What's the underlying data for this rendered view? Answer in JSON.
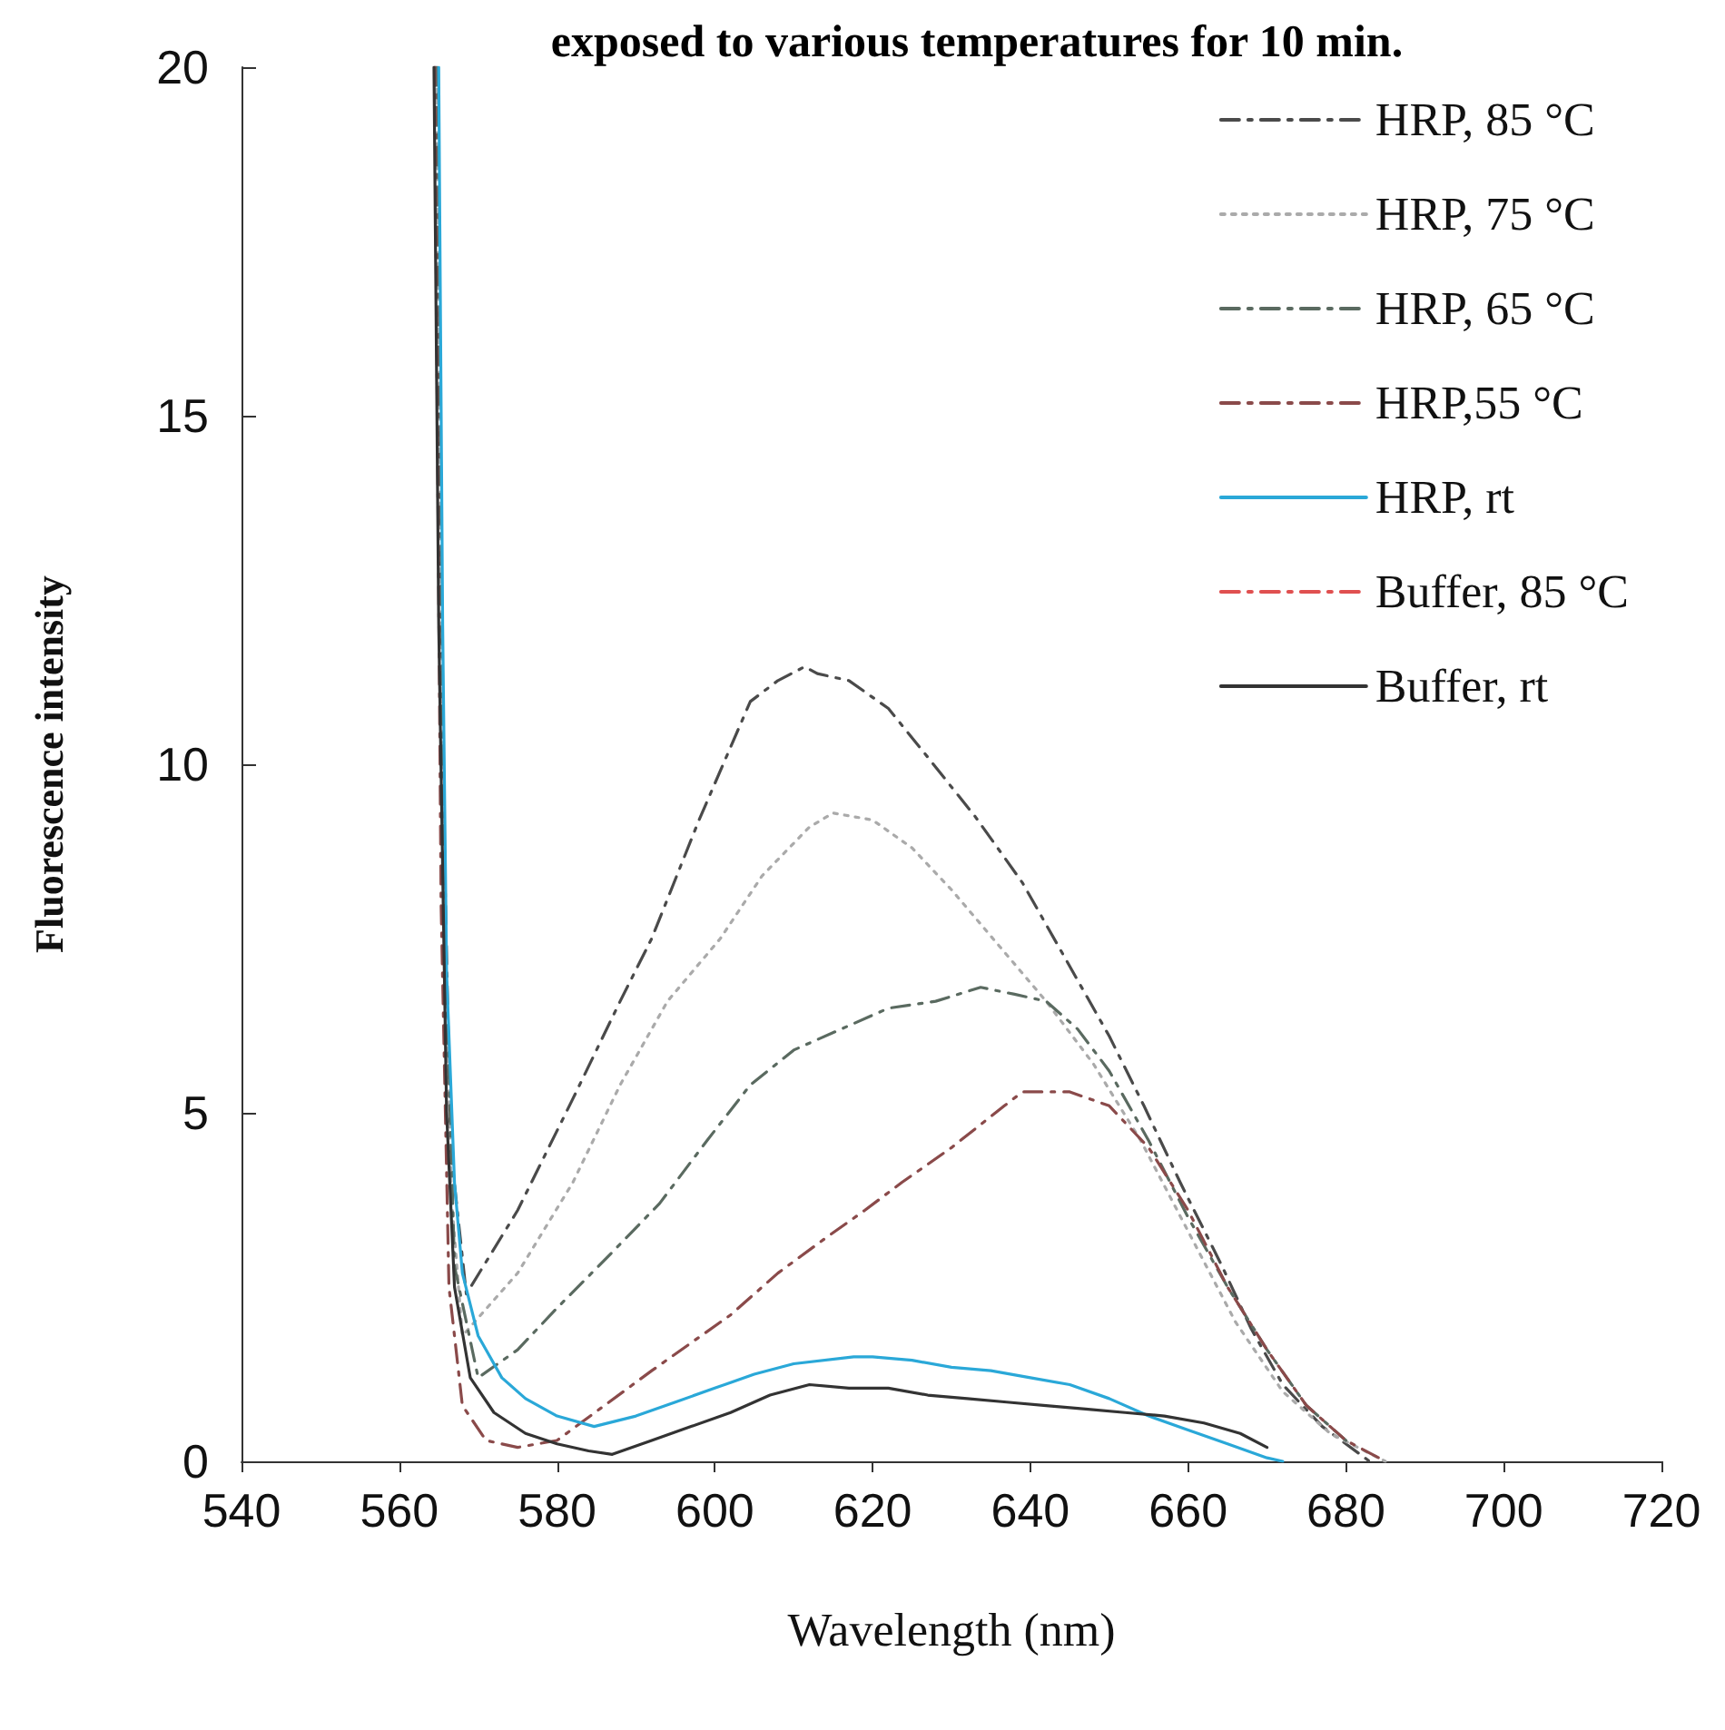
{
  "chart_data": {
    "type": "line",
    "title": "exposed to various temperatures for 10 min.",
    "xlabel": "Wavelength (nm)",
    "ylabel": "Fluorescence intensity",
    "xlim": [
      540,
      720
    ],
    "xticks": [
      540,
      560,
      580,
      600,
      620,
      640,
      660,
      680,
      700,
      720
    ],
    "ylim": [
      0,
      20
    ],
    "yticks": [
      0,
      5,
      10,
      15,
      20
    ],
    "grid": false,
    "legend": "top right",
    "marker": "none",
    "series": [
      {
        "name": "HRP, 85 °C",
        "color": "#4a4a4a",
        "line_style": "dashed",
        "x": [
          564.6,
          565.5,
          566.5,
          568.5,
          575,
          582,
          588,
          592,
          598,
          604.5,
          608,
          611.4,
          613,
          617,
          622,
          627,
          633,
          639,
          644.5,
          650,
          654.4,
          659,
          664.3,
          668,
          672,
          677,
          683
        ],
        "values": [
          20,
          10,
          4.5,
          2.4,
          3.6,
          5.2,
          6.6,
          7.5,
          9.2,
          10.9,
          11.2,
          11.4,
          11.3,
          11.2,
          10.8,
          10.1,
          9.25,
          8.3,
          7.2,
          6.1,
          5.1,
          4.0,
          2.8,
          1.9,
          1.1,
          0.5,
          0
        ]
      },
      {
        "name": "HRP, 75 °C",
        "color": "#aaaaaa",
        "line_style": "dotted",
        "x": [
          564.7,
          565.6,
          566.6,
          568,
          575,
          582,
          588,
          594,
          600.7,
          606,
          612,
          615,
          620,
          625,
          630,
          636,
          642,
          648,
          654,
          660,
          666,
          672,
          678,
          685
        ],
        "values": [
          20,
          9,
          3.8,
          1.8,
          2.7,
          4.0,
          5.4,
          6.6,
          7.5,
          8.4,
          9.1,
          9.3,
          9.2,
          8.8,
          8.2,
          7.4,
          6.6,
          5.7,
          4.6,
          3.3,
          2.0,
          1.0,
          0.4,
          0
        ]
      },
      {
        "name": "HRP, 65 °C",
        "color": "#5a6a60",
        "line_style": "dashed",
        "x": [
          564.8,
          565.7,
          567,
          570,
          575,
          580,
          587,
          593,
          599,
          604.5,
          610,
          616,
          622,
          628,
          633.7,
          638,
          642,
          646,
          650,
          655,
          660,
          665,
          670,
          675,
          680
        ],
        "values": [
          20,
          8,
          2.8,
          1.2,
          1.6,
          2.2,
          3.0,
          3.7,
          4.6,
          5.4,
          5.9,
          6.2,
          6.5,
          6.6,
          6.8,
          6.7,
          6.6,
          6.2,
          5.6,
          4.6,
          3.5,
          2.5,
          1.6,
          0.8,
          0.3
        ]
      },
      {
        "name": "HRP,55 °C",
        "color": "#8a4a4a",
        "line_style": "dashed",
        "x": [
          564.5,
          565.3,
          566.3,
          568,
          571,
          575,
          580,
          586,
          592,
          597,
          602,
          608,
          614,
          619,
          623.7,
          630,
          636.7,
          639,
          645,
          650,
          655,
          660,
          665,
          670,
          675,
          680,
          685
        ],
        "values": [
          20,
          8,
          2.5,
          0.8,
          0.3,
          0.2,
          0.3,
          0.8,
          1.3,
          1.7,
          2.1,
          2.7,
          3.2,
          3.6,
          4.0,
          4.5,
          5.1,
          5.3,
          5.3,
          5.1,
          4.5,
          3.6,
          2.5,
          1.6,
          0.8,
          0.3,
          0
        ]
      },
      {
        "name": "HRP, rt",
        "color": "#2aa8d8",
        "line_style": "solid",
        "x": [
          565,
          565.5,
          566,
          567,
          568,
          570,
          573,
          576,
          580,
          584.7,
          590,
          595,
          600,
          605,
          610,
          617.6,
          620,
          625,
          630,
          635,
          640,
          645,
          650,
          655,
          660,
          665,
          670,
          672
        ],
        "values": [
          20,
          12,
          7,
          4,
          2.7,
          1.8,
          1.2,
          0.9,
          0.65,
          0.5,
          0.65,
          0.85,
          1.05,
          1.25,
          1.4,
          1.5,
          1.5,
          1.45,
          1.35,
          1.3,
          1.2,
          1.1,
          0.9,
          0.65,
          0.45,
          0.25,
          0.05,
          0
        ]
      },
      {
        "name": "Buffer, 85 °C",
        "color": "#e05050",
        "line_style": "dashed"
      },
      {
        "name": "Buffer, rt",
        "color": "#333333",
        "line_style": "solid",
        "x": [
          564.4,
          565,
          566,
          567,
          569,
          572,
          576,
          580,
          584,
          587,
          592,
          597,
          602,
          607,
          612,
          617,
          622,
          627,
          632,
          637,
          642,
          647,
          652,
          657,
          662,
          666.6,
          670
        ],
        "values": [
          20,
          12,
          5,
          2.5,
          1.2,
          0.7,
          0.4,
          0.25,
          0.15,
          0.1,
          0.3,
          0.5,
          0.7,
          0.95,
          1.1,
          1.05,
          1.05,
          0.95,
          0.9,
          0.85,
          0.8,
          0.75,
          0.7,
          0.65,
          0.55,
          0.4,
          0.2
        ]
      }
    ]
  }
}
